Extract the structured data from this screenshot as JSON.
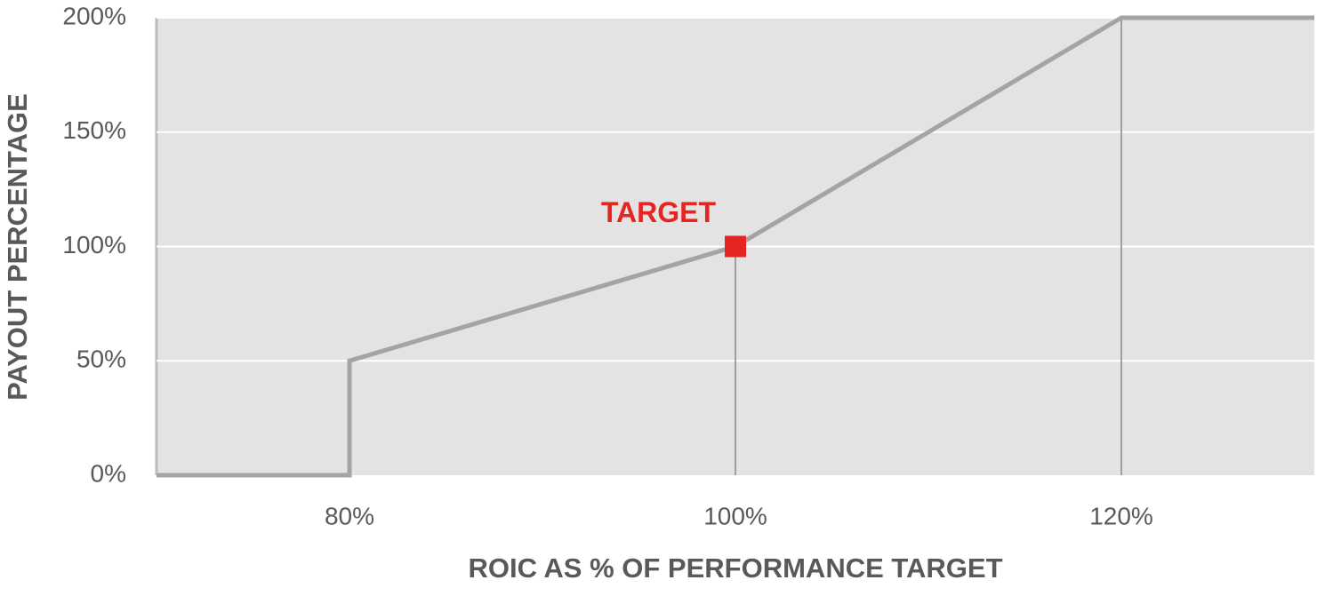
{
  "chart_data": {
    "type": "line",
    "x_label": "ROIC AS % OF PERFORMANCE TARGET",
    "y_label": "PAYOUT PERCENTAGE",
    "x": [
      70,
      80,
      80,
      100,
      120,
      130
    ],
    "series": [
      {
        "color": "#a5a3a4",
        "values": [
          0,
          0,
          50,
          100,
          200,
          200
        ]
      }
    ],
    "xlim": [
      70,
      130
    ],
    "xticks": [
      {
        "value": 80,
        "label": "80%"
      },
      {
        "value": 100,
        "label": "100%"
      },
      {
        "value": 120,
        "label": "120%"
      }
    ],
    "ylim": [
      0,
      200
    ],
    "yticks": [
      {
        "value": 0,
        "label": "0%"
      },
      {
        "value": 50,
        "label": "50%"
      },
      {
        "value": 100,
        "label": "100%"
      },
      {
        "value": 150,
        "label": "150%"
      },
      {
        "value": 200,
        "label": "200%"
      }
    ],
    "grid": true,
    "annotations": [
      {
        "text": "TARGET",
        "x": 100,
        "y": 100,
        "color": "#e52521"
      }
    ]
  }
}
